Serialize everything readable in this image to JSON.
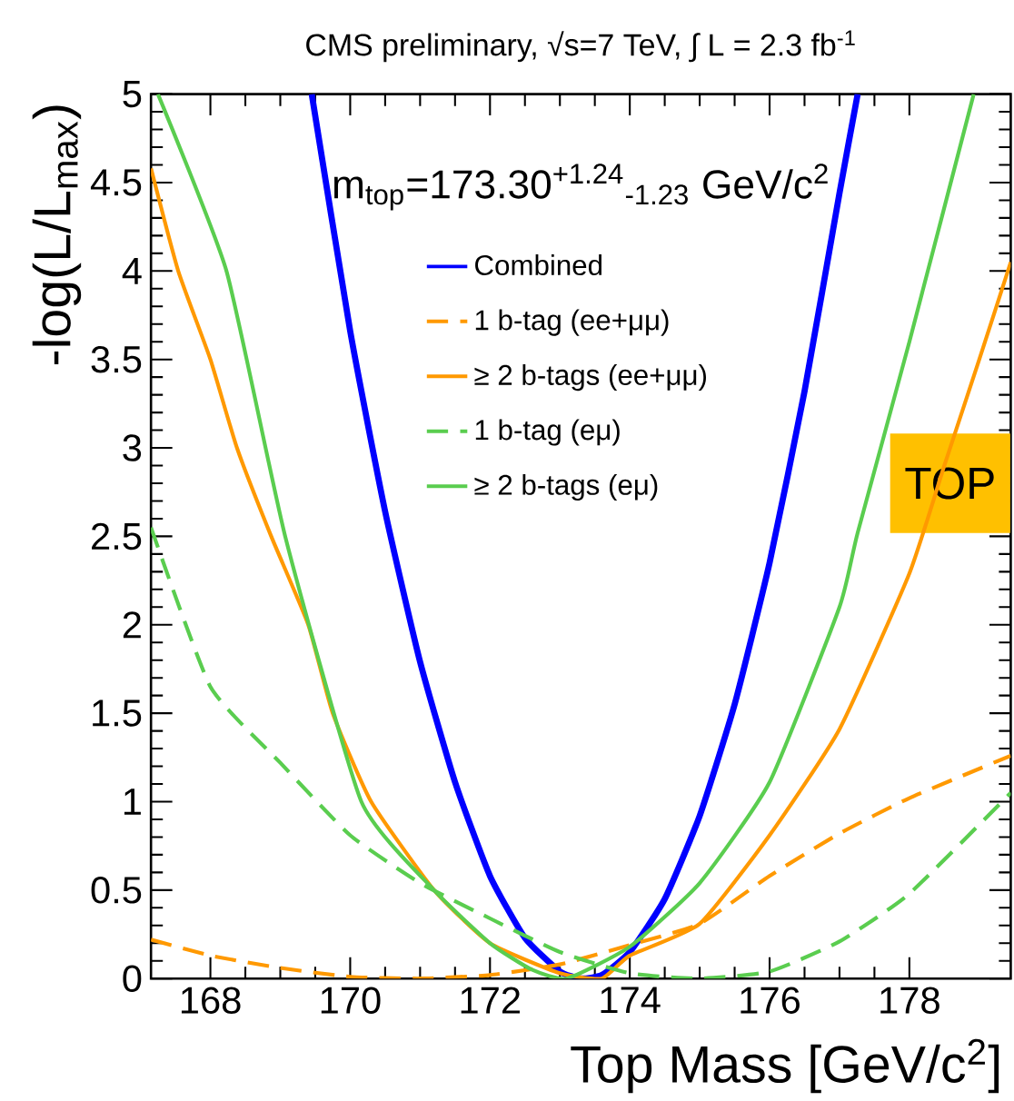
{
  "chart_data": {
    "type": "line",
    "title": "CMS preliminary, √s=7 TeV, ∫ L = 2.3 fb$^{-1}$",
    "xlabel": "Top Mass [GeV/c$^{2}$]",
    "ylabel": "-log(L/L$_{max}$)",
    "annotations": [
      "m$_{top}$=173.30$^{+1.24}$$_{-1.23}$ GeV/c$^{2}$",
      "TOP"
    ],
    "xlim": [
      167.15,
      179.45
    ],
    "ylim": [
      0,
      5
    ],
    "xticks": [
      168,
      170,
      172,
      174,
      176,
      178
    ],
    "yticks": [
      0,
      0.5,
      1,
      1.5,
      2,
      2.5,
      3,
      3.5,
      4,
      4.5,
      5
    ],
    "legend": "top",
    "grid": false,
    "series": [
      {
        "name": "Combined",
        "color": "#0000ff",
        "line_style": "solid",
        "x": [
          169.45,
          170,
          170.5,
          171,
          171.5,
          172,
          172.5,
          173,
          173.3,
          173.6,
          174,
          174.5,
          175,
          175.5,
          176,
          176.5,
          177,
          177.26
        ],
        "values": [
          5,
          3.66,
          2.64,
          1.79,
          1.11,
          0.58,
          0.23,
          0.04,
          0,
          0.02,
          0.15,
          0.45,
          0.92,
          1.55,
          2.35,
          3.32,
          4.44,
          5
        ]
      },
      {
        "name": "1 b-tag (ee+μμ)",
        "color": "#ff9900",
        "line_style": "dashed",
        "x": [
          167.15,
          168,
          169,
          170,
          171,
          172,
          173,
          174,
          175,
          176,
          177,
          178,
          179.45
        ],
        "values": [
          0.22,
          0.13,
          0.06,
          0.01,
          0,
          0.02,
          0.08,
          0.19,
          0.31,
          0.58,
          0.82,
          1.02,
          1.26
        ]
      },
      {
        "name": "≥ 2 b-tags (ee+μμ)",
        "color": "#ff9900",
        "line_style": "solid",
        "x": [
          167.15,
          167.54,
          168,
          168.38,
          168.87,
          169.4,
          169.75,
          170.3,
          171.2,
          172,
          173,
          173.6,
          174,
          175,
          176,
          177,
          178,
          178.5,
          179,
          179.45
        ],
        "values": [
          4.58,
          4,
          3.5,
          3,
          2.5,
          2,
          1.5,
          1,
          0.5,
          0.2,
          0.03,
          0,
          0.13,
          0.31,
          0.81,
          1.41,
          2.29,
          2.9,
          3.5,
          4.05
        ]
      },
      {
        "name": "1 b-tag (eμ)",
        "color": "#5acd4f",
        "line_style": "dashed",
        "x": [
          167.15,
          168,
          169,
          170,
          171,
          172,
          173,
          174,
          175,
          176,
          177,
          178,
          179.45
        ],
        "values": [
          2.55,
          1.65,
          1.22,
          0.81,
          0.54,
          0.34,
          0.15,
          0.03,
          0,
          0.04,
          0.21,
          0.48,
          1.05
        ]
      },
      {
        "name": "≥ 2 b-tags (eμ)",
        "color": "#5acd4f",
        "line_style": "solid",
        "x": [
          167.25,
          168.23,
          169.07,
          170.16,
          171.2,
          172,
          172.6,
          173.1,
          174,
          175,
          176,
          177,
          177.26,
          178,
          178.92
        ],
        "values": [
          5,
          4,
          2.5,
          1,
          0.5,
          0.2,
          0.05,
          0,
          0.18,
          0.54,
          1.11,
          2.1,
          2.52,
          3.6,
          5
        ]
      }
    ]
  }
}
